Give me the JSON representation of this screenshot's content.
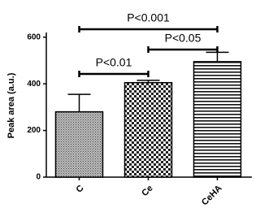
{
  "chart_data": {
    "type": "bar",
    "y_label": "Peak area (a.u.)",
    "categories": [
      "C",
      "Ce",
      "CeHA"
    ],
    "values": [
      280,
      405,
      495
    ],
    "errors": [
      75,
      10,
      40
    ],
    "ylim": [
      0,
      620
    ],
    "yticks": [
      0,
      200,
      400,
      600
    ],
    "annotations": [
      "P<0.001",
      "P<0.05",
      "P<0.01"
    ]
  }
}
